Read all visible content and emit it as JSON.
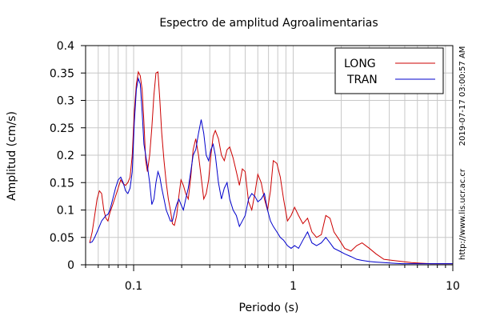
{
  "chart_data": {
    "type": "line",
    "title": "Espectro de amplitud Agroalimentarias",
    "xlabel": "Periodo (s)",
    "ylabel": "Amplitud (cm/s)",
    "xscale": "log",
    "xlim": [
      0.05,
      10
    ],
    "ylim": [
      0,
      0.4
    ],
    "xticks": [
      {
        "value": 0.1,
        "label": "0.1"
      },
      {
        "value": 1,
        "label": "1"
      },
      {
        "value": 10,
        "label": "10"
      }
    ],
    "yticks": [
      {
        "value": 0,
        "label": "0"
      },
      {
        "value": 0.05,
        "label": "0.05"
      },
      {
        "value": 0.1,
        "label": "0.1"
      },
      {
        "value": 0.15,
        "label": "0.15"
      },
      {
        "value": 0.2,
        "label": "0.2"
      },
      {
        "value": 0.25,
        "label": "0.25"
      },
      {
        "value": 0.3,
        "label": "0.3"
      },
      {
        "value": 0.35,
        "label": "0.35"
      },
      {
        "value": 0.4,
        "label": "0.4"
      }
    ],
    "grid": true,
    "legend_position": "top-right",
    "side_text_right_top": "2019-07-17 03:00:57 AM",
    "side_text_right_bottom": "http://www.lis.ucr.ac.cr",
    "series": [
      {
        "name": "LONG",
        "color": "#cc0000",
        "x": [
          0.053,
          0.055,
          0.057,
          0.059,
          0.061,
          0.063,
          0.065,
          0.067,
          0.069,
          0.071,
          0.074,
          0.077,
          0.08,
          0.083,
          0.086,
          0.089,
          0.092,
          0.095,
          0.098,
          0.101,
          0.104,
          0.107,
          0.11,
          0.113,
          0.116,
          0.119,
          0.122,
          0.126,
          0.13,
          0.134,
          0.138,
          0.142,
          0.146,
          0.15,
          0.155,
          0.16,
          0.165,
          0.17,
          0.175,
          0.18,
          0.186,
          0.192,
          0.198,
          0.205,
          0.212,
          0.22,
          0.228,
          0.236,
          0.245,
          0.255,
          0.265,
          0.275,
          0.285,
          0.295,
          0.305,
          0.315,
          0.325,
          0.34,
          0.355,
          0.37,
          0.385,
          0.4,
          0.42,
          0.44,
          0.46,
          0.48,
          0.5,
          0.525,
          0.55,
          0.575,
          0.6,
          0.63,
          0.66,
          0.69,
          0.72,
          0.75,
          0.79,
          0.83,
          0.87,
          0.92,
          0.97,
          1.02,
          1.08,
          1.15,
          1.23,
          1.31,
          1.4,
          1.5,
          1.6,
          1.7,
          1.8,
          1.95,
          2.1,
          2.3,
          2.5,
          2.7,
          3.0,
          3.3,
          3.7,
          4.2,
          4.8,
          5.5,
          6.3,
          7.3,
          8.5,
          10.0
        ],
        "values": [
          0.04,
          0.06,
          0.09,
          0.12,
          0.135,
          0.13,
          0.1,
          0.085,
          0.08,
          0.095,
          0.11,
          0.125,
          0.14,
          0.155,
          0.148,
          0.145,
          0.15,
          0.16,
          0.2,
          0.28,
          0.33,
          0.352,
          0.345,
          0.32,
          0.26,
          0.19,
          0.17,
          0.2,
          0.25,
          0.31,
          0.35,
          0.352,
          0.3,
          0.24,
          0.19,
          0.15,
          0.12,
          0.1,
          0.075,
          0.072,
          0.09,
          0.125,
          0.155,
          0.145,
          0.13,
          0.12,
          0.16,
          0.21,
          0.23,
          0.2,
          0.16,
          0.12,
          0.13,
          0.155,
          0.2,
          0.235,
          0.245,
          0.23,
          0.2,
          0.19,
          0.21,
          0.215,
          0.195,
          0.17,
          0.145,
          0.175,
          0.17,
          0.115,
          0.1,
          0.13,
          0.165,
          0.15,
          0.12,
          0.1,
          0.135,
          0.19,
          0.185,
          0.16,
          0.12,
          0.08,
          0.09,
          0.105,
          0.09,
          0.075,
          0.085,
          0.06,
          0.05,
          0.055,
          0.09,
          0.085,
          0.06,
          0.045,
          0.03,
          0.025,
          0.035,
          0.04,
          0.03,
          0.02,
          0.01,
          0.008,
          0.006,
          0.004,
          0.003,
          0.002,
          0.002,
          0.002
        ]
      },
      {
        "name": "TRAN",
        "color": "#0000cc",
        "x": [
          0.053,
          0.055,
          0.057,
          0.059,
          0.061,
          0.063,
          0.065,
          0.067,
          0.069,
          0.071,
          0.074,
          0.077,
          0.08,
          0.083,
          0.086,
          0.089,
          0.092,
          0.095,
          0.098,
          0.101,
          0.104,
          0.107,
          0.11,
          0.113,
          0.116,
          0.119,
          0.122,
          0.126,
          0.13,
          0.134,
          0.138,
          0.142,
          0.146,
          0.15,
          0.155,
          0.16,
          0.165,
          0.17,
          0.175,
          0.18,
          0.186,
          0.192,
          0.198,
          0.205,
          0.212,
          0.22,
          0.228,
          0.236,
          0.245,
          0.255,
          0.265,
          0.275,
          0.285,
          0.295,
          0.305,
          0.315,
          0.325,
          0.34,
          0.355,
          0.37,
          0.385,
          0.4,
          0.42,
          0.44,
          0.46,
          0.48,
          0.5,
          0.525,
          0.55,
          0.575,
          0.6,
          0.63,
          0.66,
          0.69,
          0.72,
          0.75,
          0.79,
          0.83,
          0.87,
          0.92,
          0.97,
          1.02,
          1.08,
          1.15,
          1.23,
          1.31,
          1.4,
          1.5,
          1.6,
          1.7,
          1.8,
          1.95,
          2.1,
          2.3,
          2.5,
          2.7,
          3.0,
          3.3,
          3.7,
          4.2,
          4.8,
          5.5,
          6.3,
          7.3,
          8.5,
          10.0
        ],
        "values": [
          0.04,
          0.042,
          0.05,
          0.06,
          0.07,
          0.08,
          0.085,
          0.09,
          0.092,
          0.1,
          0.12,
          0.14,
          0.155,
          0.16,
          0.15,
          0.135,
          0.13,
          0.14,
          0.17,
          0.26,
          0.32,
          0.34,
          0.33,
          0.28,
          0.22,
          0.2,
          0.18,
          0.15,
          0.11,
          0.12,
          0.15,
          0.17,
          0.16,
          0.14,
          0.12,
          0.1,
          0.09,
          0.08,
          0.08,
          0.095,
          0.11,
          0.12,
          0.11,
          0.1,
          0.12,
          0.14,
          0.17,
          0.2,
          0.21,
          0.24,
          0.265,
          0.24,
          0.2,
          0.19,
          0.21,
          0.22,
          0.2,
          0.15,
          0.12,
          0.14,
          0.15,
          0.12,
          0.1,
          0.09,
          0.07,
          0.08,
          0.09,
          0.12,
          0.13,
          0.125,
          0.115,
          0.12,
          0.13,
          0.1,
          0.08,
          0.07,
          0.06,
          0.05,
          0.045,
          0.035,
          0.03,
          0.035,
          0.03,
          0.045,
          0.06,
          0.04,
          0.035,
          0.04,
          0.05,
          0.04,
          0.03,
          0.025,
          0.02,
          0.015,
          0.01,
          0.008,
          0.006,
          0.005,
          0.004,
          0.003,
          0.002,
          0.002,
          0.002,
          0.002,
          0.002,
          0.002
        ]
      }
    ]
  }
}
